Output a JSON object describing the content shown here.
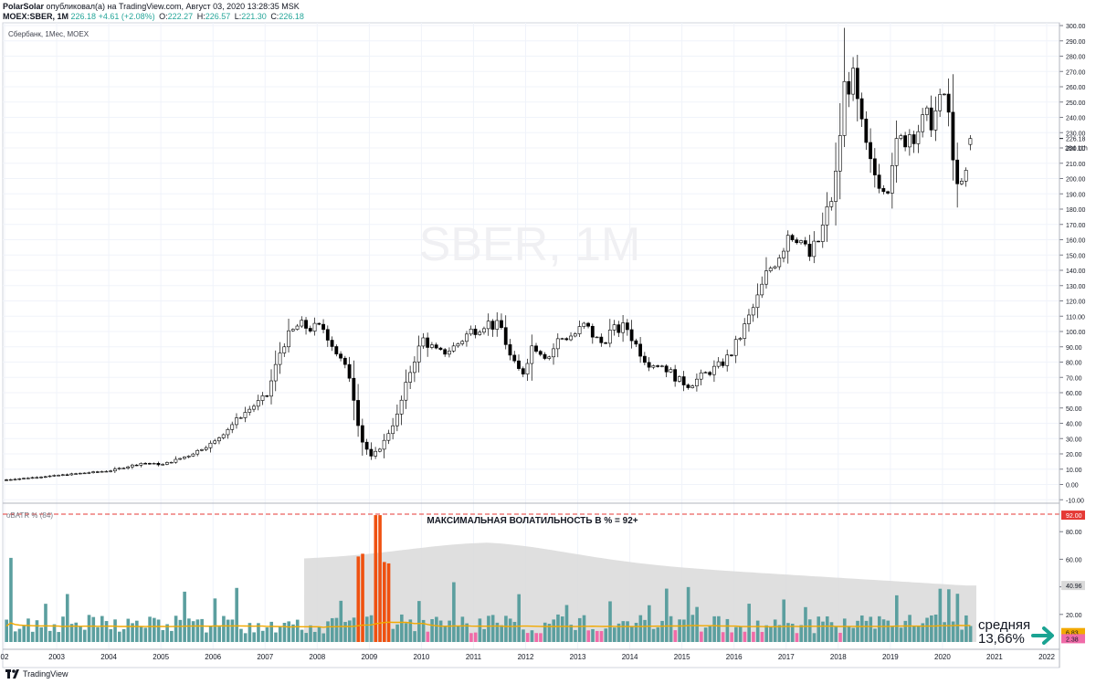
{
  "header": {
    "author": "PolarSolar",
    "published": "опубликовал(а) на TradingView.com, Август 03, 2020 13:28:35 MSK",
    "symbol": "MOEX:SBER, 1M",
    "last": "226.18",
    "change": "+4.61 (+2.08%)",
    "o_label": "O:",
    "o": "222.27",
    "h_label": "H:",
    "h": "226.57",
    "l_label": "L:",
    "l": "221.30",
    "c_label": "C:",
    "c": "226.18"
  },
  "legend": "Сбербанк, 1Мес, MOEX",
  "watermark": "SBER, 1M",
  "indicator_legend": "oBATR % (84)",
  "annotation": "МАКСИМАЛЬНАЯ ВОЛАТИЛЬНОСТЬ В % = 92+",
  "note": {
    "line1": "средняя",
    "line2": "13,66%"
  },
  "footer": {
    "brand": "TradingView"
  },
  "colors": {
    "up": "#ffffff",
    "down": "#000000",
    "bar_teal": "#5b9f9f",
    "bar_pink": "#f06ba8",
    "bar_peak": "#ef5110",
    "ma": "#f2a900",
    "band": "#d9d9d9",
    "dashed": "#e53935",
    "arrow": "#1aa392"
  },
  "chart_data": [
    {
      "type": "candlestick",
      "title": "Сбербанк, 1Мес, MOEX",
      "x_axis": {
        "ticks": [
          "02",
          "2003",
          "2004",
          "2005",
          "2006",
          "2007",
          "2008",
          "2009",
          "2010",
          "2011",
          "2012",
          "2013",
          "2014",
          "2015",
          "2016",
          "2017",
          "2018",
          "2019",
          "2020",
          "2021",
          "2022"
        ]
      },
      "y_axis": {
        "range": [
          -10,
          300
        ],
        "ticks": [
          300,
          290,
          280,
          270,
          260,
          250,
          240,
          230,
          220,
          210,
          200,
          190,
          180,
          170,
          160,
          150,
          140,
          130,
          120,
          110,
          100,
          90,
          80,
          70,
          60,
          50,
          40,
          30,
          20,
          10,
          0,
          -10
        ]
      },
      "y_tick_labels": [
        "300.00",
        "290.00",
        "280.00",
        "270.00",
        "260.00",
        "250.00",
        "240.00",
        "230.00",
        "220.00",
        "210.00",
        "200.00",
        "190.00",
        "180.00",
        "170.00",
        "160.00",
        "150.00",
        "140.00",
        "130.00",
        "120.00",
        "110.00",
        "100.00",
        "90.00",
        "80.00",
        "70.00",
        "60.00",
        "50.00",
        "40.00",
        "30.00",
        "20.00",
        "10.00",
        "0.00",
        "-10.00"
      ],
      "last_price_label": "226.18",
      "countdown_label": "28d 11h",
      "anchors": [
        [
          2002.0,
          3
        ],
        [
          2003.0,
          6
        ],
        [
          2004.0,
          9
        ],
        [
          2004.6,
          14
        ],
        [
          2005.0,
          13
        ],
        [
          2005.5,
          19
        ],
        [
          2006.0,
          28
        ],
        [
          2006.5,
          45
        ],
        [
          2007.0,
          58
        ],
        [
          2007.3,
          92
        ],
        [
          2007.6,
          104
        ],
        [
          2007.9,
          102
        ],
        [
          2008.1,
          102
        ],
        [
          2008.4,
          82
        ],
        [
          2008.6,
          70
        ],
        [
          2008.8,
          30
        ],
        [
          2009.0,
          18
        ],
        [
          2009.2,
          25
        ],
        [
          2009.5,
          45
        ],
        [
          2009.8,
          80
        ],
        [
          2010.0,
          95
        ],
        [
          2010.3,
          85
        ],
        [
          2010.6,
          90
        ],
        [
          2010.9,
          100
        ],
        [
          2011.2,
          106
        ],
        [
          2011.5,
          102
        ],
        [
          2011.7,
          80
        ],
        [
          2011.9,
          72
        ],
        [
          2012.1,
          92
        ],
        [
          2012.4,
          83
        ],
        [
          2012.6,
          95
        ],
        [
          2012.9,
          98
        ],
        [
          2013.1,
          104
        ],
        [
          2013.4,
          92
        ],
        [
          2013.6,
          100
        ],
        [
          2013.9,
          103
        ],
        [
          2014.1,
          90
        ],
        [
          2014.3,
          80
        ],
        [
          2014.6,
          78
        ],
        [
          2014.9,
          68
        ],
        [
          2015.1,
          65
        ],
        [
          2015.4,
          72
        ],
        [
          2015.7,
          78
        ],
        [
          2015.9,
          85
        ],
        [
          2016.1,
          98
        ],
        [
          2016.4,
          120
        ],
        [
          2016.6,
          138
        ],
        [
          2016.9,
          155
        ],
        [
          2017.0,
          165
        ],
        [
          2017.2,
          163
        ],
        [
          2017.4,
          148
        ],
        [
          2017.6,
          160
        ],
        [
          2017.9,
          195
        ],
        [
          2018.0,
          230
        ],
        [
          2018.1,
          265
        ],
        [
          2018.25,
          262
        ],
        [
          2018.45,
          225
        ],
        [
          2018.6,
          205
        ],
        [
          2018.9,
          195
        ],
        [
          2019.0,
          215
        ],
        [
          2019.3,
          230
        ],
        [
          2019.6,
          235
        ],
        [
          2019.9,
          245
        ],
        [
          2020.0,
          255
        ],
        [
          2020.15,
          225
        ],
        [
          2020.25,
          190
        ],
        [
          2020.4,
          200
        ],
        [
          2020.55,
          212
        ],
        [
          2020.6,
          226
        ]
      ],
      "note": "monthly OHLC path interpolated through the anchor closes"
    },
    {
      "type": "bar",
      "title": "МАКСИМАЛЬНАЯ ВОЛАТИЛЬНОСТЬ В % = 92+",
      "y_axis": {
        "range": [
          0,
          92
        ],
        "ticks": [
          80,
          60,
          40,
          20
        ]
      },
      "y_tick_labels": [
        "80.00",
        "60.00",
        "40.00",
        "20.00"
      ],
      "band_label": "40.96",
      "top_label": "92.00",
      "avg_label": "6.83",
      "last_label": "2.38",
      "peaks": [
        {
          "x": 2008.75,
          "value": 62
        },
        {
          "x": 2008.83,
          "value": 64
        },
        {
          "x": 2009.08,
          "value": 92
        },
        {
          "x": 2009.17,
          "value": 92
        },
        {
          "x": 2009.25,
          "value": 58
        },
        {
          "x": 2009.33,
          "value": 57
        }
      ],
      "average": 13.66
    }
  ]
}
